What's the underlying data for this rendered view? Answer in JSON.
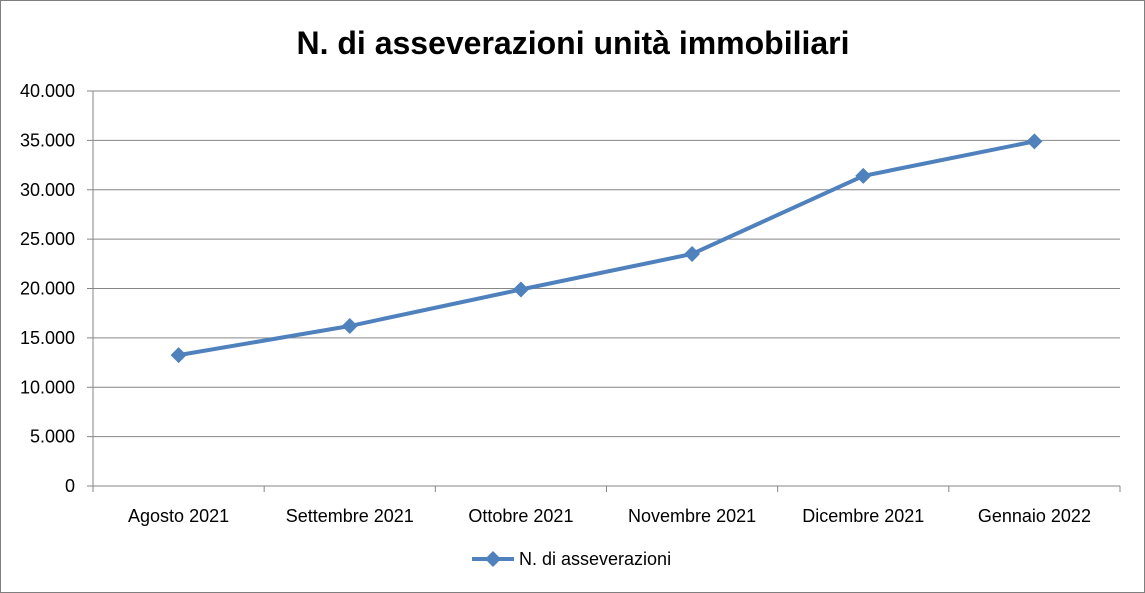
{
  "chart_data": {
    "type": "line",
    "title": "N. di asseverazioni unità immobiliari",
    "categories": [
      "Agosto 2021",
      "Settembre 2021",
      "Ottobre 2021",
      "Novembre 2021",
      "Dicembre 2021",
      "Gennaio 2022"
    ],
    "series": [
      {
        "name": "N. di asseverazioni",
        "values": [
          13250,
          16200,
          19900,
          23500,
          31400,
          34900
        ],
        "color": "#4f81bd",
        "marker": "diamond"
      }
    ],
    "ylim": [
      0,
      40000
    ],
    "yticks": [
      0,
      5000,
      10000,
      15000,
      20000,
      25000,
      30000,
      35000,
      40000
    ],
    "ytick_labels": [
      "0",
      "5.000",
      "10.000",
      "15.000",
      "20.000",
      "25.000",
      "30.000",
      "35.000",
      "40.000"
    ],
    "grid": true,
    "legend_position": "bottom",
    "xlabel": "",
    "ylabel": ""
  }
}
